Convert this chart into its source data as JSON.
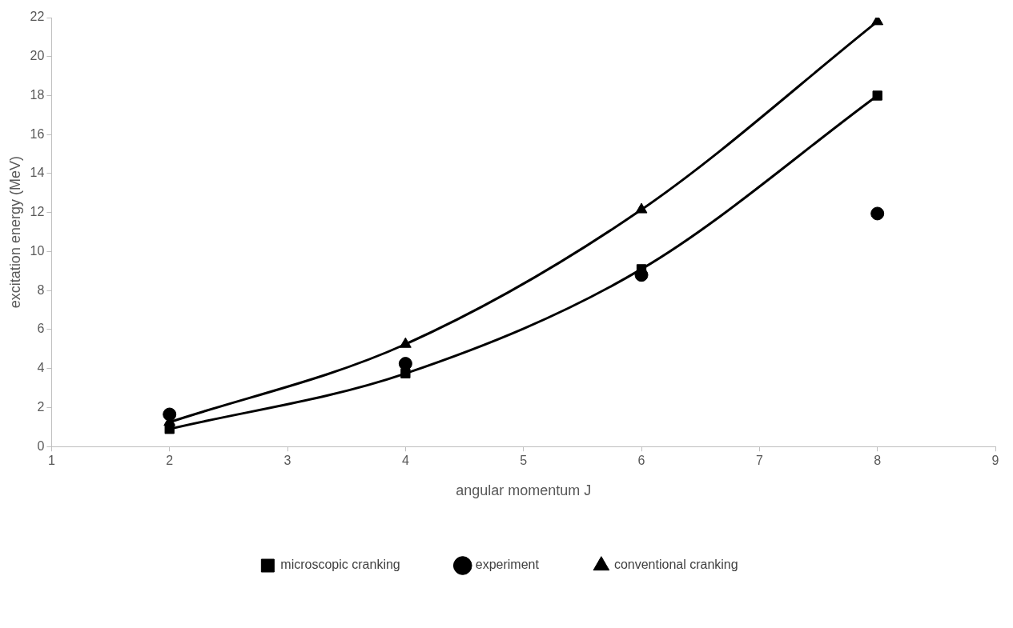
{
  "chart_data": {
    "type": "line",
    "xlabel": "angular momentum J",
    "ylabel": "excitation energy (MeV)",
    "x": [
      2,
      4,
      6,
      8
    ],
    "series": [
      {
        "name": "microscopic cranking",
        "color": "#000000",
        "marker": "square",
        "values": [
          0.9,
          3.75,
          9.1,
          18
        ]
      },
      {
        "name": "experiment",
        "type": "scatter",
        "color": "#000000",
        "marker": "circle",
        "values": [
          1.65,
          4.25,
          8.8,
          11.95
        ]
      },
      {
        "name": "conventional cranking",
        "color": "#000000",
        "marker": "triangle",
        "values": [
          1.25,
          5.25,
          12.15,
          21.8
        ]
      }
    ],
    "xlim": [
      1,
      9
    ],
    "xticks": [
      1,
      2,
      3,
      4,
      5,
      6,
      7,
      8,
      9
    ],
    "ylim": [
      0,
      22
    ],
    "yticks": [
      0,
      2,
      4,
      6,
      8,
      10,
      12,
      14,
      16,
      18,
      20,
      22
    ],
    "grid": false,
    "legend": "bottom"
  }
}
